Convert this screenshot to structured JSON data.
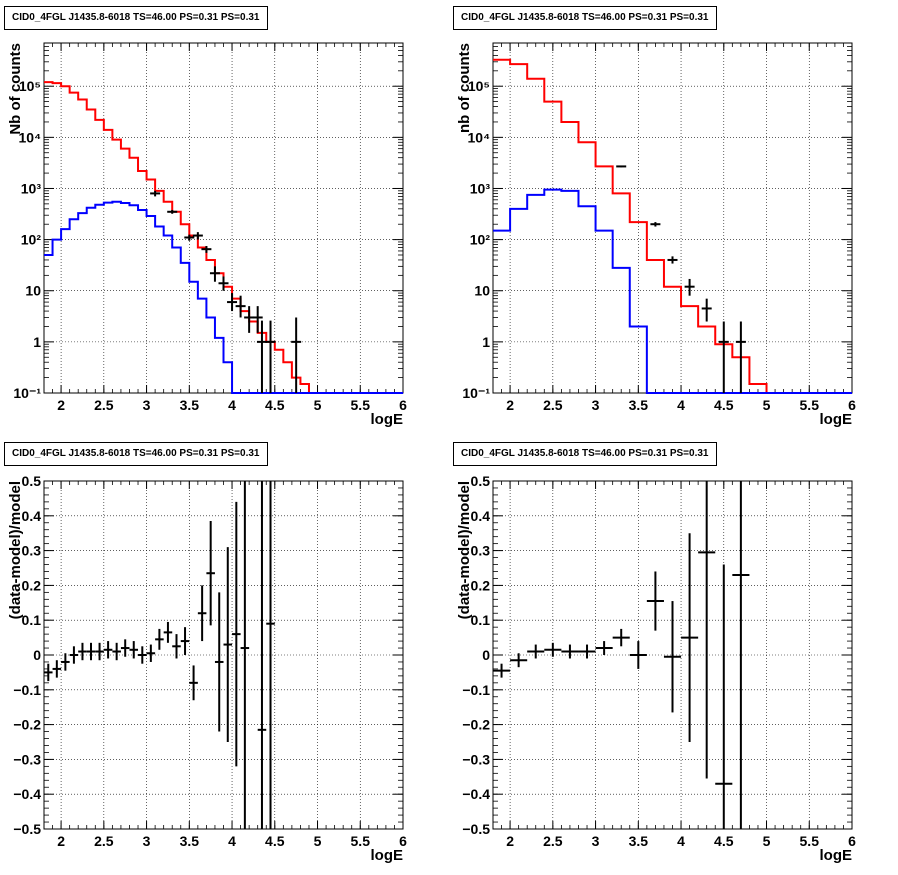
{
  "chart_data": [
    {
      "type": "line",
      "title": "CID0_4FGL J1435.8-6018 TS=46.00 PS=0.31 PS=0.31",
      "xlabel": "logE",
      "ylabel": "Nb of counts",
      "xlim": [
        1.8,
        6
      ],
      "ylim": [
        0.1,
        700000
      ],
      "yscale": "log",
      "grid": true,
      "xticks": [
        "2",
        "2.5",
        "3",
        "3.5",
        "4",
        "4.5",
        "5",
        "5.5",
        "6"
      ],
      "yticks": [
        "10⁻¹",
        "1",
        "10",
        "10²",
        "10³",
        "10⁴",
        "10⁵"
      ],
      "bin_edges": [
        1.8,
        1.9,
        2.0,
        2.1,
        2.2,
        2.3,
        2.4,
        2.5,
        2.6,
        2.7,
        2.8,
        2.9,
        3.0,
        3.1,
        3.2,
        3.3,
        3.4,
        3.5,
        3.6,
        3.7,
        3.8,
        3.9,
        4.0,
        4.1,
        4.2,
        4.3,
        4.4,
        4.5,
        4.6,
        4.7,
        4.8,
        4.9,
        5.0,
        5.1,
        5.2,
        5.3,
        5.4,
        5.5,
        5.6,
        5.7,
        5.8,
        5.9,
        6.0
      ],
      "series": [
        {
          "color": "#ff0000",
          "values": [
            120000,
            115000,
            100000,
            75000,
            55000,
            35000,
            22000,
            14000,
            9000,
            6000,
            4000,
            2200,
            1500,
            900,
            550,
            350,
            200,
            120,
            70,
            40,
            22,
            12,
            7,
            4,
            2.5,
            1.5,
            1,
            0.7,
            0.4,
            0.2,
            0.15,
            0.1,
            0.1,
            0.1,
            0.1,
            0.1,
            0.1,
            0.1,
            0.1,
            0.1,
            0.1,
            0.1
          ]
        },
        {
          "color": "#0000ff",
          "values": [
            50,
            100,
            160,
            250,
            330,
            420,
            480,
            530,
            550,
            520,
            470,
            380,
            290,
            180,
            120,
            70,
            35,
            15,
            7,
            3,
            1.2,
            0.4,
            0.1,
            0.1,
            0.1,
            0.1,
            0.1,
            0.1,
            0.1,
            0.1,
            0.1,
            0.1,
            0.1,
            0.1,
            0.1,
            0.1,
            0.1,
            0.1,
            0.1,
            0.1,
            0.1,
            0.1
          ]
        }
      ],
      "points": [
        {
          "x": 3.1,
          "y": 800,
          "elo": 700,
          "ehi": 900
        },
        {
          "x": 3.3,
          "y": 350,
          "elo": 320,
          "ehi": 380
        },
        {
          "x": 3.5,
          "y": 110,
          "elo": 95,
          "ehi": 125
        },
        {
          "x": 3.6,
          "y": 120,
          "elo": 100,
          "ehi": 140
        },
        {
          "x": 3.7,
          "y": 65,
          "elo": 55,
          "ehi": 75
        },
        {
          "x": 3.8,
          "y": 22,
          "elo": 15,
          "ehi": 30
        },
        {
          "x": 3.9,
          "y": 14,
          "elo": 10,
          "ehi": 19
        },
        {
          "x": 4.0,
          "y": 6,
          "elo": 4,
          "ehi": 9
        },
        {
          "x": 4.1,
          "y": 5,
          "elo": 3,
          "ehi": 8
        },
        {
          "x": 4.2,
          "y": 3,
          "elo": 1.5,
          "ehi": 5
        },
        {
          "x": 4.3,
          "y": 3,
          "elo": 1.5,
          "ehi": 5
        },
        {
          "x": 4.35,
          "y": 1,
          "elo": 0.1,
          "ehi": 2.6
        },
        {
          "x": 4.45,
          "y": 1,
          "elo": 0.1,
          "ehi": 2.6
        },
        {
          "x": 4.75,
          "y": 1,
          "elo": 0.1,
          "ehi": 3
        }
      ]
    },
    {
      "type": "line",
      "title": "CID0_4FGL J1435.8-6018 TS=46.00 PS=0.31 PS=0.31",
      "xlabel": "logE",
      "ylabel": "nb of counts",
      "xlim": [
        1.8,
        6
      ],
      "ylim": [
        0.1,
        700000
      ],
      "yscale": "log",
      "grid": true,
      "xticks": [
        "2",
        "2.5",
        "3",
        "3.5",
        "4",
        "4.5",
        "5",
        "5.5",
        "6"
      ],
      "yticks": [
        "10⁻¹",
        "1",
        "10",
        "10²",
        "10³",
        "10⁴",
        "10⁵"
      ],
      "bin_edges": [
        1.8,
        2.0,
        2.2,
        2.4,
        2.6,
        2.8,
        3.0,
        3.2,
        3.4,
        3.6,
        3.8,
        4.0,
        4.2,
        4.4,
        4.6,
        4.8,
        5.0,
        5.2,
        5.4,
        5.6,
        5.8,
        6.0
      ],
      "series": [
        {
          "color": "#ff0000",
          "values": [
            330000,
            270000,
            140000,
            50000,
            20000,
            8000,
            2700,
            800,
            220,
            40,
            12,
            5,
            2,
            0.9,
            0.5,
            0.15,
            0.1,
            0.1,
            0.1,
            0.1,
            0.1
          ]
        },
        {
          "color": "#0000ff",
          "values": [
            150,
            400,
            750,
            950,
            900,
            450,
            150,
            28,
            2,
            0.1,
            0.1,
            0.1,
            0.1,
            0.1,
            0.1,
            0.1,
            0.1,
            0.1,
            0.1,
            0.1,
            0.1
          ]
        }
      ],
      "points": [
        {
          "x": 3.3,
          "y": 2700,
          "elo": 2600,
          "ehi": 2800
        },
        {
          "x": 3.7,
          "y": 200,
          "elo": 180,
          "ehi": 220
        },
        {
          "x": 3.9,
          "y": 40,
          "elo": 34,
          "ehi": 47
        },
        {
          "x": 4.1,
          "y": 12,
          "elo": 8,
          "ehi": 17
        },
        {
          "x": 4.3,
          "y": 4.5,
          "elo": 2.5,
          "ehi": 7
        },
        {
          "x": 4.5,
          "y": 1,
          "elo": 0.1,
          "ehi": 2.5
        },
        {
          "x": 4.7,
          "y": 1,
          "elo": 0.1,
          "ehi": 2.5
        }
      ]
    },
    {
      "type": "scatter",
      "title": "CID0_4FGL J1435.8-6018 TS=46.00 PS=0.31 PS=0.31",
      "xlabel": "logE",
      "ylabel": "(data-model)/model",
      "xlim": [
        1.8,
        6
      ],
      "ylim": [
        -0.5,
        0.5
      ],
      "yscale": "linear",
      "grid": true,
      "xticks": [
        "2",
        "2.5",
        "3",
        "3.5",
        "4",
        "4.5",
        "5",
        "5.5",
        "6"
      ],
      "yticks": [
        "−0.5",
        "−0.4",
        "−0.3",
        "−0.2",
        "−0.1",
        "0",
        "0.1",
        "0.2",
        "0.3",
        "0.4",
        "0.5"
      ],
      "points": [
        {
          "x": 1.85,
          "y": -0.05,
          "err": 0.025,
          "xw": 0.05
        },
        {
          "x": 1.95,
          "y": -0.04,
          "err": 0.025,
          "xw": 0.05
        },
        {
          "x": 2.05,
          "y": -0.02,
          "err": 0.025,
          "xw": 0.05
        },
        {
          "x": 2.15,
          "y": 0.0,
          "err": 0.025,
          "xw": 0.05
        },
        {
          "x": 2.25,
          "y": 0.01,
          "err": 0.025,
          "xw": 0.05
        },
        {
          "x": 2.35,
          "y": 0.01,
          "err": 0.025,
          "xw": 0.05
        },
        {
          "x": 2.45,
          "y": 0.01,
          "err": 0.025,
          "xw": 0.05
        },
        {
          "x": 2.55,
          "y": 0.015,
          "err": 0.025,
          "xw": 0.05
        },
        {
          "x": 2.65,
          "y": 0.01,
          "err": 0.025,
          "xw": 0.05
        },
        {
          "x": 2.75,
          "y": 0.02,
          "err": 0.025,
          "xw": 0.05
        },
        {
          "x": 2.85,
          "y": 0.015,
          "err": 0.025,
          "xw": 0.05
        },
        {
          "x": 2.95,
          "y": 0.0,
          "err": 0.025,
          "xw": 0.05
        },
        {
          "x": 3.05,
          "y": 0.005,
          "err": 0.025,
          "xw": 0.05
        },
        {
          "x": 3.15,
          "y": 0.045,
          "err": 0.03,
          "xw": 0.05
        },
        {
          "x": 3.25,
          "y": 0.065,
          "err": 0.03,
          "xw": 0.05
        },
        {
          "x": 3.35,
          "y": 0.025,
          "err": 0.035,
          "xw": 0.05
        },
        {
          "x": 3.45,
          "y": 0.04,
          "err": 0.04,
          "xw": 0.05
        },
        {
          "x": 3.55,
          "y": -0.08,
          "err": 0.05,
          "xw": 0.05
        },
        {
          "x": 3.65,
          "y": 0.12,
          "err": 0.08,
          "xw": 0.05
        },
        {
          "x": 3.75,
          "y": 0.235,
          "err": 0.15,
          "xw": 0.05
        },
        {
          "x": 3.85,
          "y": -0.02,
          "err": 0.2,
          "xw": 0.05
        },
        {
          "x": 3.95,
          "y": 0.03,
          "err": 0.28,
          "xw": 0.05
        },
        {
          "x": 4.05,
          "y": 0.06,
          "err": 0.38,
          "xw": 0.05
        },
        {
          "x": 4.15,
          "y": 0.02,
          "err": 0.7,
          "xw": 0.05
        },
        {
          "x": 4.35,
          "y": -0.215,
          "err": 0.8,
          "xw": 0.05
        },
        {
          "x": 4.45,
          "y": 0.09,
          "err": 0.8,
          "xw": 0.05
        }
      ]
    },
    {
      "type": "scatter",
      "title": "CID0_4FGL J1435.8-6018 TS=46.00 PS=0.31 PS=0.31",
      "xlabel": "logE",
      "ylabel": "(data-model)/model",
      "xlim": [
        1.8,
        6
      ],
      "ylim": [
        -0.5,
        0.5
      ],
      "yscale": "linear",
      "grid": true,
      "xticks": [
        "2",
        "2.5",
        "3",
        "3.5",
        "4",
        "4.5",
        "5",
        "5.5",
        "6"
      ],
      "yticks": [
        "−0.5",
        "−0.4",
        "−0.3",
        "−0.2",
        "−0.1",
        "0",
        "0.1",
        "0.2",
        "0.3",
        "0.4",
        "0.5"
      ],
      "points": [
        {
          "x": 1.9,
          "y": -0.045,
          "err": 0.02,
          "xw": 0.1
        },
        {
          "x": 2.1,
          "y": -0.015,
          "err": 0.02,
          "xw": 0.1
        },
        {
          "x": 2.3,
          "y": 0.01,
          "err": 0.02,
          "xw": 0.1
        },
        {
          "x": 2.5,
          "y": 0.015,
          "err": 0.02,
          "xw": 0.1
        },
        {
          "x": 2.7,
          "y": 0.01,
          "err": 0.02,
          "xw": 0.1
        },
        {
          "x": 2.9,
          "y": 0.01,
          "err": 0.02,
          "xw": 0.1
        },
        {
          "x": 3.1,
          "y": 0.02,
          "err": 0.02,
          "xw": 0.1
        },
        {
          "x": 3.3,
          "y": 0.05,
          "err": 0.025,
          "xw": 0.1
        },
        {
          "x": 3.5,
          "y": 0.0,
          "err": 0.04,
          "xw": 0.1
        },
        {
          "x": 3.7,
          "y": 0.155,
          "err": 0.085,
          "xw": 0.1
        },
        {
          "x": 3.9,
          "y": -0.005,
          "err": 0.16,
          "xw": 0.1
        },
        {
          "x": 4.1,
          "y": 0.05,
          "err": 0.3,
          "xw": 0.1
        },
        {
          "x": 4.3,
          "y": 0.295,
          "err": 0.65,
          "xw": 0.1
        },
        {
          "x": 4.5,
          "y": -0.37,
          "err": 0.63,
          "xw": 0.1
        },
        {
          "x": 4.7,
          "y": 0.23,
          "err": 0.8,
          "xw": 0.1
        }
      ]
    }
  ]
}
